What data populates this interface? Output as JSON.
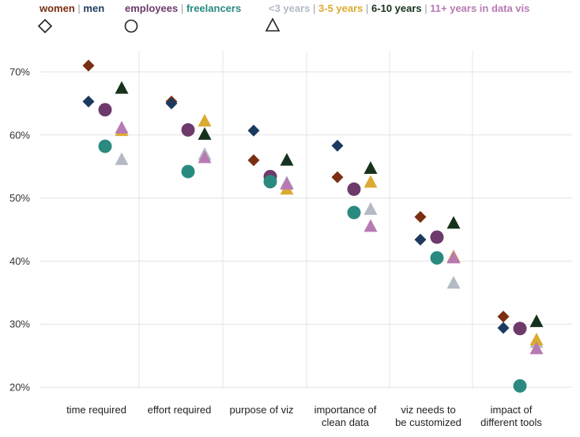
{
  "chart_data": {
    "type": "scatter",
    "categories": [
      [
        "time required"
      ],
      [
        "effort required"
      ],
      [
        "purpose of viz"
      ],
      [
        "importance of",
        "clean data"
      ],
      [
        "viz needs to",
        "be customized"
      ],
      [
        "impact of",
        "different tools"
      ]
    ],
    "ylim": [
      18,
      73
    ],
    "yticks": [
      "20%",
      "30%",
      "40%",
      "50%",
      "60%",
      "70%"
    ],
    "ytick_values": [
      20,
      30,
      40,
      50,
      60,
      70
    ],
    "grid": true,
    "legend": {
      "groups": [
        {
          "shape": "diamond",
          "items": [
            {
              "label": "women",
              "color": "#7a2e12"
            },
            {
              "label": "men",
              "color": "#1c3a5e"
            }
          ]
        },
        {
          "shape": "circle",
          "items": [
            {
              "label": "employees",
              "color": "#6d3a6b"
            },
            {
              "label": "freelancers",
              "color": "#2b8a80"
            }
          ]
        },
        {
          "shape": "triangle",
          "items": [
            {
              "label": "<3 years",
              "color": "#b4bac4"
            },
            {
              "label": "3-5 years",
              "color": "#dcaa32"
            },
            {
              "label": "6-10 years",
              "color": "#16321c"
            },
            {
              "label": "11+ years in data vis",
              "color": "#b87ab3"
            }
          ]
        }
      ]
    },
    "series": [
      {
        "name": "women",
        "shape": "diamond",
        "color": "#7a2e12",
        "offset": -10,
        "values": [
          71,
          65.3,
          56,
          53.3,
          47,
          31.2
        ]
      },
      {
        "name": "men",
        "shape": "diamond",
        "color": "#1c3a5e",
        "offset": -10,
        "values": [
          65.3,
          65,
          60.7,
          58.3,
          43.4,
          29.4
        ]
      },
      {
        "name": "employees",
        "shape": "circle",
        "color": "#6d3a6b",
        "offset": 11,
        "values": [
          64,
          60.8,
          53.4,
          51.4,
          43.8,
          29.3
        ]
      },
      {
        "name": "freelancers",
        "shape": "circle",
        "color": "#2b8a80",
        "offset": 11,
        "values": [
          58.2,
          54.2,
          52.6,
          47.7,
          40.5,
          20.2
        ]
      },
      {
        "name": "<3 years",
        "shape": "triangle",
        "color": "#b4bac4",
        "offset": 32,
        "values": [
          56,
          56.8,
          52.3,
          48.1,
          36.4,
          27
        ]
      },
      {
        "name": "3-5 years",
        "shape": "triangle",
        "color": "#dcaa32",
        "offset": 32,
        "values": [
          60.6,
          62.1,
          51.3,
          52.4,
          40.6,
          27.4
        ]
      },
      {
        "name": "6-10 years",
        "shape": "triangle",
        "color": "#16321c",
        "offset": 32,
        "values": [
          67.3,
          60,
          55.9,
          54.6,
          45.9,
          30.3
        ]
      },
      {
        "name": "11+ years in data vis",
        "shape": "triangle",
        "color": "#b87ab3",
        "offset": 32,
        "values": [
          61,
          56.3,
          52.1,
          45.4,
          40.4,
          26
        ]
      }
    ]
  }
}
